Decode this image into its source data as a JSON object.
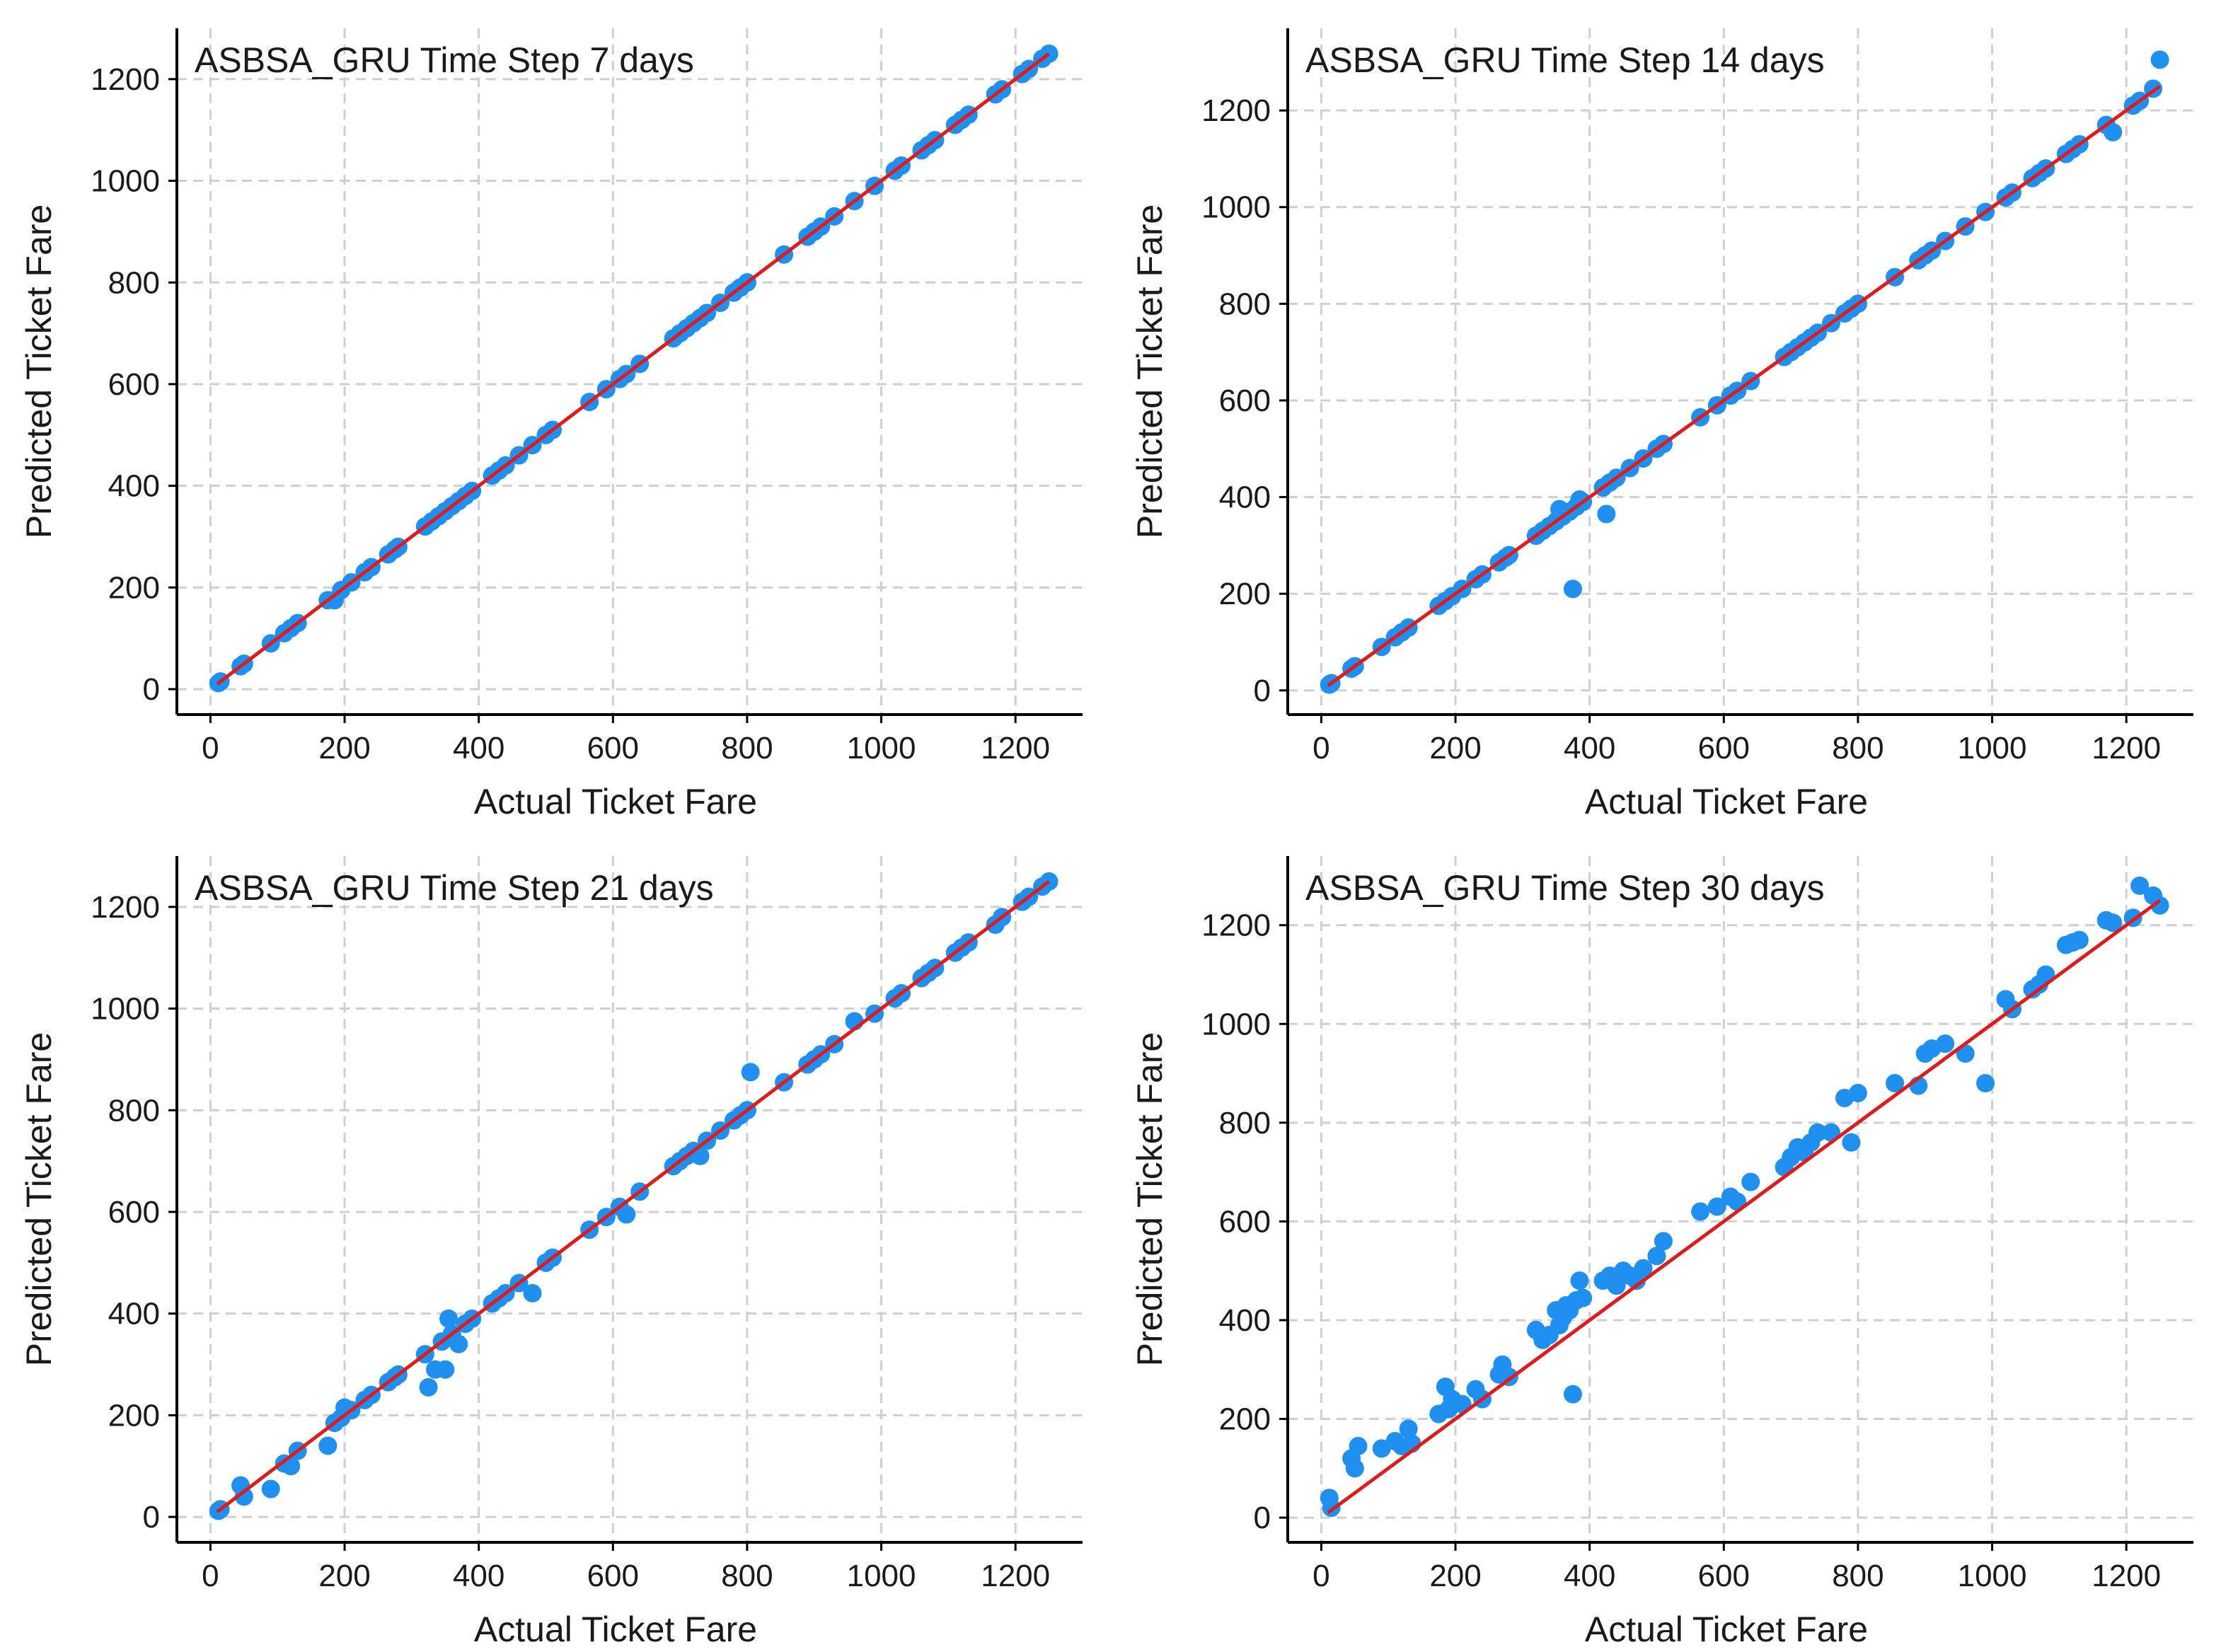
{
  "colors": {
    "points": "#1f8ff0",
    "fit_line": "#e01b1b",
    "grid": "#cfcfcf",
    "axis": "#000000"
  },
  "chart_data": [
    {
      "type": "scatter",
      "title": "ASBSA_GRU Time Step 7 days",
      "xlabel": "Actual Ticket Fare",
      "ylabel": "Predicted Ticket Fare",
      "xlim": [
        -50,
        1300
      ],
      "ylim": [
        -50,
        1300
      ],
      "xticks": [
        "0",
        "200",
        "400",
        "600",
        "800",
        "1000",
        "1200"
      ],
      "yticks": [
        "0",
        "200",
        "400",
        "600",
        "800",
        "1000",
        "1200"
      ],
      "grid": true,
      "fit_line": {
        "x": [
          10,
          1250
        ],
        "y": [
          10,
          1250
        ]
      },
      "x": [
        12,
        15,
        45,
        50,
        90,
        110,
        120,
        130,
        175,
        185,
        195,
        210,
        230,
        240,
        265,
        275,
        280,
        320,
        330,
        340,
        350,
        360,
        370,
        380,
        390,
        420,
        430,
        440,
        460,
        480,
        500,
        510,
        565,
        590,
        610,
        620,
        640,
        690,
        700,
        710,
        720,
        730,
        740,
        760,
        780,
        790,
        800,
        855,
        890,
        900,
        910,
        930,
        960,
        990,
        1020,
        1030,
        1060,
        1070,
        1080,
        1110,
        1120,
        1130,
        1170,
        1180,
        1210,
        1220,
        1240,
        1250
      ],
      "y": [
        12,
        15,
        45,
        50,
        90,
        110,
        120,
        130,
        175,
        175,
        195,
        210,
        230,
        240,
        265,
        275,
        280,
        320,
        330,
        340,
        350,
        360,
        370,
        380,
        390,
        420,
        430,
        440,
        460,
        480,
        500,
        510,
        565,
        590,
        610,
        620,
        640,
        690,
        700,
        710,
        720,
        730,
        740,
        760,
        780,
        790,
        800,
        855,
        890,
        900,
        910,
        930,
        960,
        990,
        1020,
        1030,
        1060,
        1070,
        1080,
        1110,
        1120,
        1130,
        1170,
        1180,
        1210,
        1220,
        1240,
        1250
      ]
    },
    {
      "type": "scatter",
      "title": "ASBSA_GRU Time Step 14 days",
      "xlabel": "Actual Ticket Fare",
      "ylabel": "Predicted Ticket Fare",
      "xlim": [
        -50,
        1300
      ],
      "ylim": [
        -50,
        1370
      ],
      "xticks": [
        "0",
        "200",
        "400",
        "600",
        "800",
        "1000",
        "1200"
      ],
      "yticks": [
        "0",
        "200",
        "400",
        "600",
        "800",
        "1000",
        "1200"
      ],
      "grid": true,
      "fit_line": {
        "x": [
          10,
          1250
        ],
        "y": [
          10,
          1250
        ]
      },
      "x": [
        12,
        15,
        45,
        50,
        90,
        110,
        120,
        130,
        175,
        185,
        195,
        210,
        230,
        240,
        265,
        275,
        280,
        320,
        330,
        340,
        350,
        355,
        360,
        370,
        375,
        380,
        385,
        390,
        420,
        425,
        430,
        440,
        460,
        480,
        500,
        510,
        565,
        590,
        610,
        620,
        640,
        690,
        700,
        710,
        720,
        730,
        740,
        760,
        780,
        790,
        800,
        855,
        890,
        900,
        910,
        930,
        960,
        990,
        1020,
        1030,
        1060,
        1070,
        1080,
        1110,
        1120,
        1130,
        1170,
        1180,
        1210,
        1220,
        1240,
        1250
      ],
      "y": [
        12,
        15,
        45,
        50,
        90,
        110,
        120,
        130,
        175,
        185,
        195,
        210,
        230,
        240,
        265,
        275,
        280,
        320,
        330,
        340,
        350,
        375,
        360,
        370,
        210,
        380,
        395,
        390,
        420,
        365,
        430,
        440,
        460,
        480,
        500,
        510,
        565,
        590,
        610,
        620,
        640,
        690,
        700,
        710,
        720,
        730,
        740,
        760,
        780,
        790,
        800,
        855,
        890,
        900,
        910,
        930,
        960,
        990,
        1020,
        1030,
        1060,
        1070,
        1080,
        1110,
        1120,
        1130,
        1170,
        1155,
        1210,
        1220,
        1245,
        1305
      ]
    },
    {
      "type": "scatter",
      "title": "ASBSA_GRU Time Step 21 days",
      "xlabel": "Actual Ticket Fare",
      "ylabel": "Predicted Ticket Fare",
      "xlim": [
        -50,
        1300
      ],
      "ylim": [
        -50,
        1300
      ],
      "xticks": [
        "0",
        "200",
        "400",
        "600",
        "800",
        "1000",
        "1200"
      ],
      "yticks": [
        "0",
        "200",
        "400",
        "600",
        "800",
        "1000",
        "1200"
      ],
      "grid": true,
      "fit_line": {
        "x": [
          10,
          1250
        ],
        "y": [
          10,
          1250
        ]
      },
      "x": [
        12,
        15,
        45,
        50,
        90,
        110,
        120,
        130,
        175,
        185,
        195,
        200,
        210,
        230,
        240,
        265,
        275,
        280,
        320,
        325,
        335,
        345,
        350,
        355,
        360,
        370,
        380,
        390,
        420,
        430,
        440,
        460,
        480,
        500,
        510,
        565,
        590,
        610,
        620,
        640,
        690,
        700,
        710,
        720,
        730,
        740,
        760,
        780,
        790,
        800,
        805,
        855,
        890,
        900,
        910,
        930,
        960,
        990,
        1020,
        1030,
        1060,
        1070,
        1080,
        1110,
        1120,
        1130,
        1170,
        1180,
        1210,
        1220,
        1240,
        1250
      ],
      "y": [
        12,
        15,
        62,
        40,
        55,
        105,
        100,
        130,
        140,
        185,
        195,
        215,
        210,
        230,
        240,
        265,
        275,
        280,
        320,
        255,
        290,
        345,
        290,
        390,
        360,
        340,
        380,
        390,
        420,
        430,
        440,
        460,
        440,
        500,
        510,
        565,
        590,
        610,
        595,
        640,
        690,
        700,
        710,
        720,
        710,
        740,
        760,
        780,
        790,
        800,
        875,
        855,
        890,
        900,
        910,
        930,
        975,
        990,
        1020,
        1030,
        1060,
        1070,
        1080,
        1110,
        1120,
        1130,
        1165,
        1180,
        1210,
        1220,
        1240,
        1250
      ]
    },
    {
      "type": "scatter",
      "title": "ASBSA_GRU Time Step 30 days",
      "xlabel": "Actual Ticket Fare",
      "ylabel": "Predicted Ticket Fare",
      "xlim": [
        -50,
        1300
      ],
      "ylim": [
        -50,
        1340
      ],
      "xticks": [
        "0",
        "200",
        "400",
        "600",
        "800",
        "1000",
        "1200"
      ],
      "yticks": [
        "0",
        "200",
        "400",
        "600",
        "800",
        "1000",
        "1200"
      ],
      "grid": true,
      "fit_line": {
        "x": [
          10,
          1250
        ],
        "y": [
          10,
          1250
        ]
      },
      "x": [
        12,
        15,
        45,
        50,
        55,
        90,
        110,
        120,
        130,
        135,
        175,
        185,
        190,
        195,
        210,
        230,
        240,
        265,
        270,
        280,
        320,
        330,
        340,
        350,
        355,
        360,
        365,
        370,
        375,
        380,
        385,
        390,
        420,
        430,
        440,
        450,
        460,
        470,
        480,
        500,
        510,
        565,
        590,
        610,
        620,
        640,
        690,
        700,
        710,
        720,
        730,
        740,
        760,
        780,
        790,
        800,
        855,
        890,
        900,
        910,
        930,
        960,
        990,
        1020,
        1030,
        1060,
        1070,
        1080,
        1110,
        1120,
        1130,
        1170,
        1180,
        1210,
        1220,
        1240,
        1250
      ],
      "y": [
        40,
        20,
        120,
        100,
        145,
        140,
        155,
        145,
        180,
        150,
        210,
        265,
        220,
        240,
        230,
        260,
        240,
        290,
        310,
        285,
        380,
        360,
        370,
        420,
        390,
        405,
        430,
        420,
        250,
        440,
        480,
        445,
        480,
        490,
        470,
        500,
        490,
        480,
        505,
        530,
        560,
        620,
        630,
        650,
        640,
        680,
        710,
        730,
        750,
        740,
        760,
        780,
        780,
        850,
        760,
        860,
        880,
        875,
        940,
        950,
        960,
        940,
        880,
        1050,
        1030,
        1070,
        1080,
        1100,
        1160,
        1165,
        1170,
        1210,
        1205,
        1215,
        1280,
        1260,
        1240
      ]
    }
  ]
}
